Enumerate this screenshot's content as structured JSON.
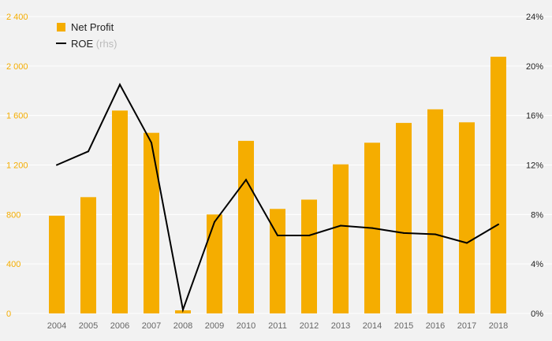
{
  "chart_data": {
    "type": "bar",
    "categories": [
      "2004",
      "2005",
      "2006",
      "2007",
      "2008",
      "2009",
      "2010",
      "2011",
      "2012",
      "2013",
      "2014",
      "2015",
      "2016",
      "2017",
      "2018"
    ],
    "series": [
      {
        "name": "Net Profit",
        "type": "bar",
        "axis": "left",
        "values": [
          790,
          940,
          1640,
          1460,
          25,
          800,
          1395,
          845,
          920,
          1205,
          1380,
          1540,
          1650,
          1545,
          2075
        ]
      },
      {
        "name": "ROE",
        "name_suffix": "(rhs)",
        "type": "line",
        "axis": "right",
        "values": [
          12.0,
          13.1,
          18.5,
          13.8,
          0.3,
          7.4,
          10.8,
          6.3,
          6.3,
          7.1,
          6.9,
          6.5,
          6.4,
          5.7,
          7.2
        ]
      }
    ],
    "y_left": {
      "ticks": [
        "0",
        "400",
        "800",
        "1 200",
        "1 600",
        "2 000",
        "2 400"
      ],
      "ylim": [
        0,
        2400
      ]
    },
    "y_right": {
      "ticks": [
        "0%",
        "4%",
        "8%",
        "12%",
        "16%",
        "20%",
        "24%"
      ],
      "ylim": [
        0,
        24
      ]
    },
    "legend_position": "top-left",
    "grid": true,
    "colors": {
      "bar": "#f5ad00",
      "line": "#000000",
      "left_axis_text": "#f5ad00",
      "background": "#f2f2f2",
      "grid": "#ffffff"
    }
  }
}
